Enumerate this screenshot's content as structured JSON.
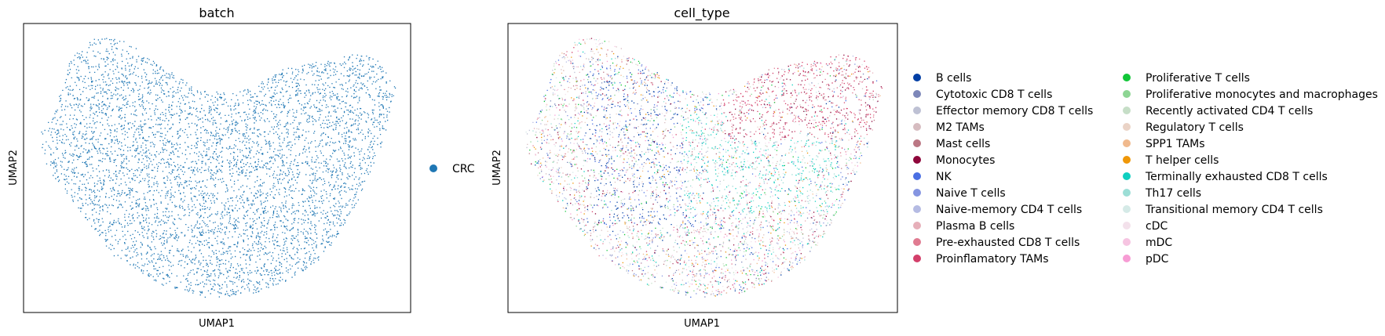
{
  "chart_data": [
    {
      "type": "scatter",
      "title": "batch",
      "xlabel": "UMAP1",
      "ylabel": "UMAP2",
      "grid": false,
      "ticks": "none",
      "legend_placement": "right",
      "legend": [
        {
          "name": "CRC",
          "color": "#1f77b4"
        }
      ]
    },
    {
      "type": "scatter",
      "title": "cell_type",
      "xlabel": "UMAP1",
      "ylabel": "UMAP2",
      "grid": false,
      "ticks": "none",
      "legend_placement": "right, two columns",
      "legend": [
        {
          "name": "B cells",
          "color": "#023fa5"
        },
        {
          "name": "Cytotoxic CD8 T cells",
          "color": "#7d87b9"
        },
        {
          "name": "Effector memory CD8 T cells",
          "color": "#bec1d4"
        },
        {
          "name": "M2 TAMs",
          "color": "#d6bcc0"
        },
        {
          "name": "Mast cells",
          "color": "#bb7784"
        },
        {
          "name": "Monocytes",
          "color": "#8e063b"
        },
        {
          "name": "NK",
          "color": "#4a6fe3"
        },
        {
          "name": "Naive T cells",
          "color": "#8595e1"
        },
        {
          "name": "Naive-memory CD4 T cells",
          "color": "#b5bbe3"
        },
        {
          "name": "Plasma B cells",
          "color": "#e6afb9"
        },
        {
          "name": "Pre-exhausted CD8 T cells",
          "color": "#e07b91"
        },
        {
          "name": "Proinflamatory TAMs",
          "color": "#d33f6a"
        },
        {
          "name": "Proliferative T cells",
          "color": "#11c638"
        },
        {
          "name": "Proliferative monocytes and macrophages",
          "color": "#8dd593"
        },
        {
          "name": "Recently activated CD4 T cells",
          "color": "#c6dec7"
        },
        {
          "name": "Regulatory T cells",
          "color": "#ead3c6"
        },
        {
          "name": "SPP1 TAMs",
          "color": "#f0b98d"
        },
        {
          "name": "T helper cells",
          "color": "#ef9708"
        },
        {
          "name": "Terminally exhausted CD8 T cells",
          "color": "#0fcfc0"
        },
        {
          "name": "Th17 cells",
          "color": "#9cded6"
        },
        {
          "name": "Transitional memory CD4 T cells",
          "color": "#d5eae7"
        },
        {
          "name": "cDC",
          "color": "#f3e1eb"
        },
        {
          "name": "mDC",
          "color": "#f6c4e1"
        },
        {
          "name": "pDC",
          "color": "#f79cd4"
        }
      ]
    }
  ]
}
